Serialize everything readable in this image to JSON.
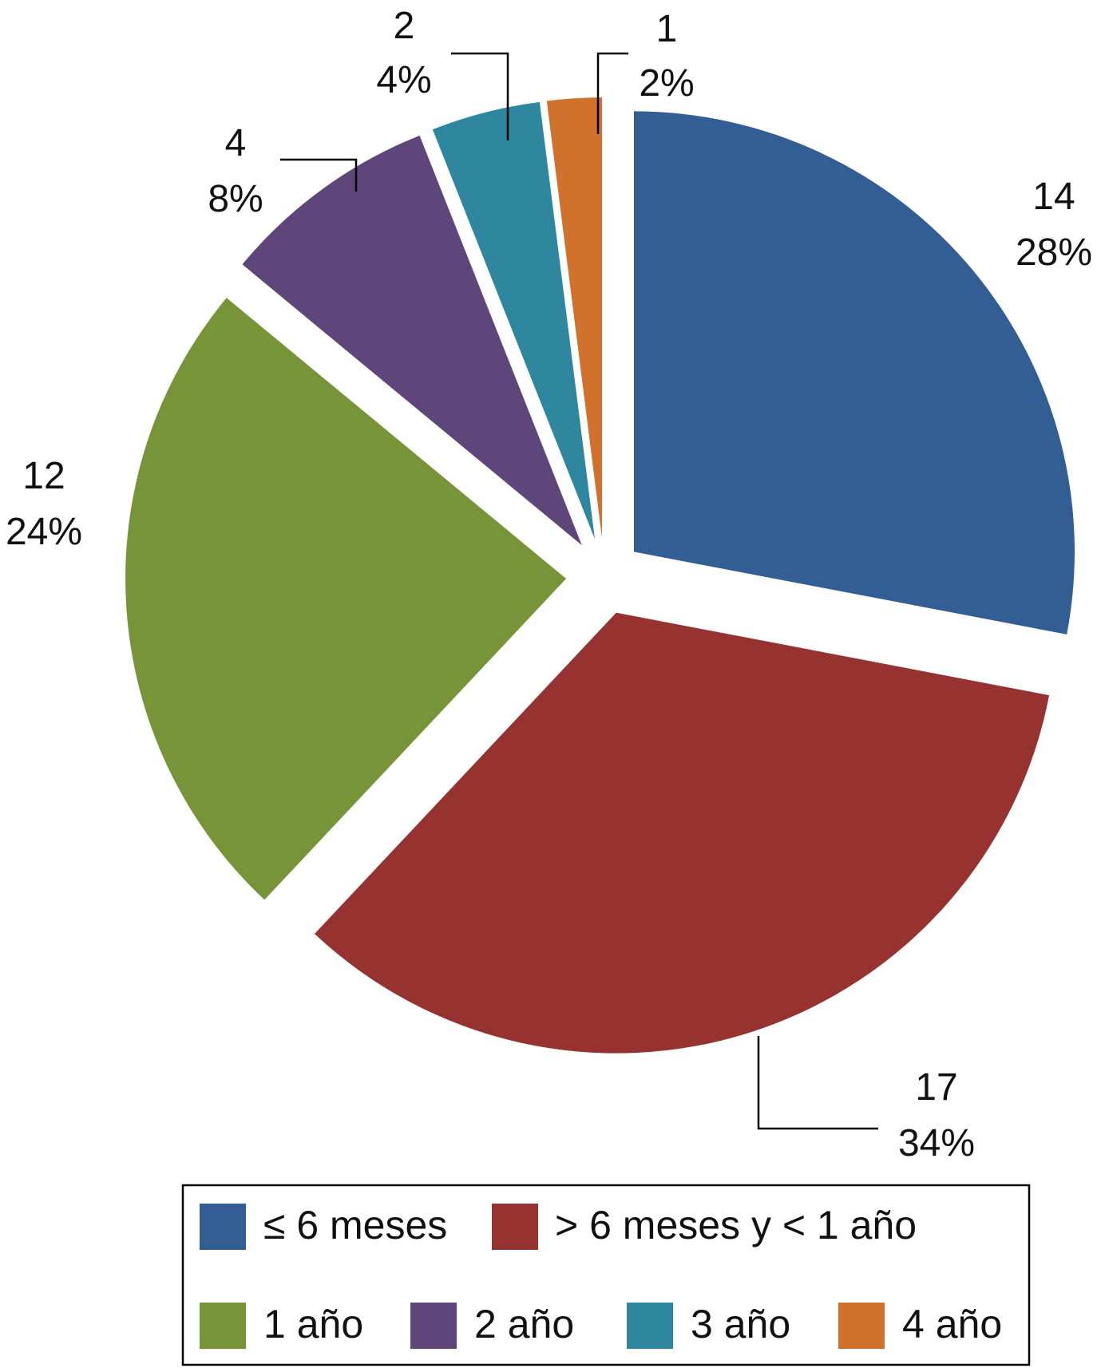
{
  "chart_data": {
    "type": "pie",
    "title": "",
    "categories": [
      "≤ 6 meses",
      "> 6 meses y < 1 año",
      "1 año",
      "2 año",
      "3 año",
      "4 año"
    ],
    "values": [
      14,
      17,
      12,
      4,
      2,
      1
    ],
    "percent_labels": [
      "28%",
      "34%",
      "24%",
      "8%",
      "4%",
      "2%"
    ],
    "colors": [
      "#335E94",
      "#963331",
      "#779439",
      "#5E467A",
      "#2E879F",
      "#D1712E"
    ],
    "exploded": true,
    "legend_position": "bottom",
    "legend_border": true
  }
}
